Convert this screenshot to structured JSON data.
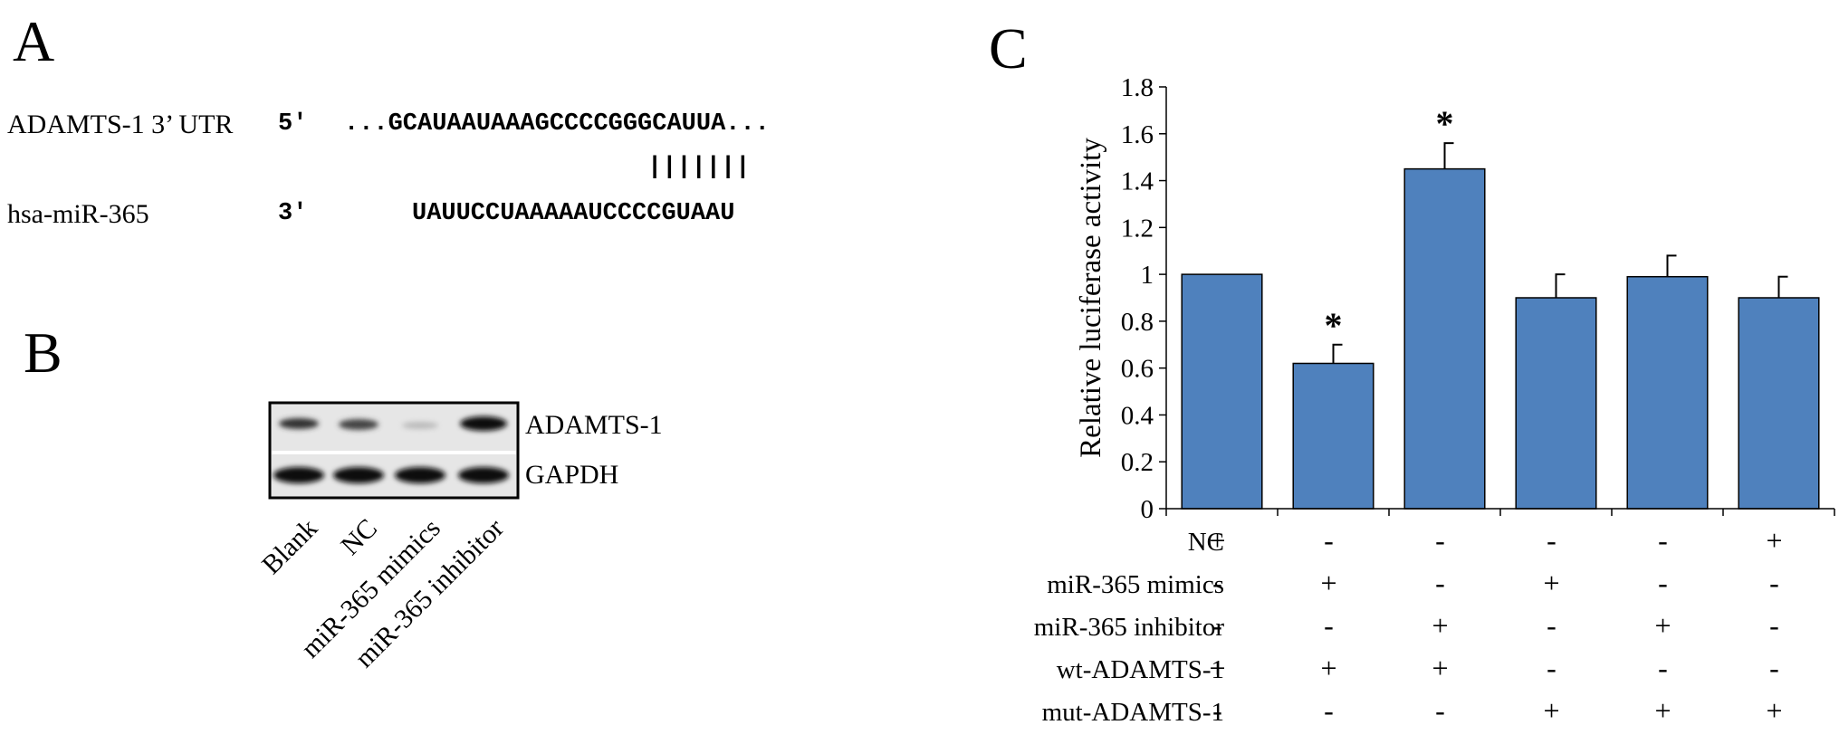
{
  "panel_a": {
    "letter": "A",
    "utr_label": "ADAMTS-1 3’ UTR",
    "utr_5prime": "5'",
    "utr_seq": "...GCAUAAUAAAGCCCCGGGCAUUA...",
    "pairing": "|||||||",
    "mir_label": "hsa-miR-365",
    "mir_3prime": "3'",
    "mir_seq": "UAUUCCUAAAAAUCCCCGUAAU"
  },
  "panel_b": {
    "letter": "B",
    "bands": [
      "ADAMTS-1",
      "GAPDH"
    ],
    "lanes": [
      "Blank",
      "NC",
      "miR-365 mimics",
      "miR-365 inhibitor"
    ]
  },
  "panel_c": {
    "letter": "C",
    "bar_color": "#4f81bd",
    "conditions": [
      {
        "label": "NC",
        "values": [
          "+",
          "-",
          "-",
          "-",
          "-",
          "+"
        ]
      },
      {
        "label": "miR-365  mimics",
        "values": [
          "-",
          "+",
          "-",
          "+",
          "-",
          "-"
        ]
      },
      {
        "label": "miR-365  inhibitor",
        "values": [
          "-",
          "-",
          "+",
          "-",
          "+",
          "-"
        ]
      },
      {
        "label": "wt-ADAMTS-1",
        "values": [
          "+",
          "+",
          "+",
          "-",
          "-",
          "-"
        ]
      },
      {
        "label": "mut-ADAMTS-1",
        "values": [
          "-",
          "-",
          "-",
          "+",
          "+",
          "+"
        ]
      }
    ]
  },
  "chart_data": {
    "type": "bar",
    "ylabel": "Relative luciferase activity",
    "ylim": [
      0,
      1.8
    ],
    "yticks": [
      "0",
      "0.2",
      "0.4",
      "0.6",
      "0.8",
      "1",
      "1.2",
      "1.4",
      "1.6",
      "1.8"
    ],
    "values": [
      1.0,
      0.62,
      1.45,
      0.9,
      0.99,
      0.9
    ],
    "errors": [
      0,
      0.08,
      0.11,
      0.1,
      0.09,
      0.09
    ],
    "significance": [
      "",
      "*",
      "*",
      "",
      "",
      ""
    ],
    "grid": false,
    "legend": "none"
  }
}
